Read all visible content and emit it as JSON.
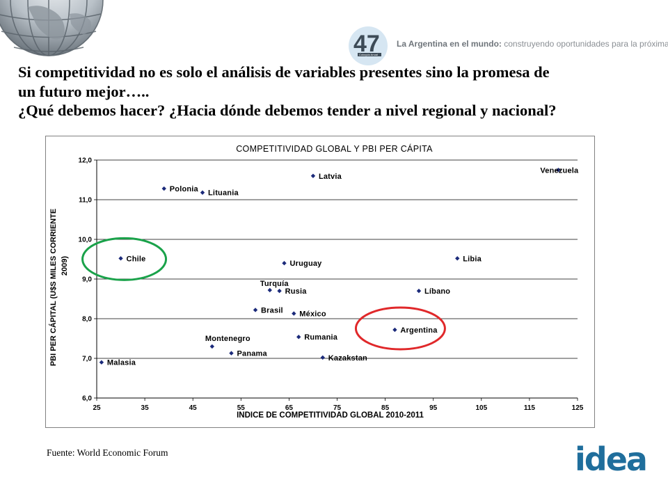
{
  "header": {
    "logo_number": "47",
    "logo_small_text": "Coloquio Anual",
    "tagline_bold": "La Argentina en el mundo:",
    "tagline_rest": " construyendo oportunidades para la próxima década"
  },
  "headline": {
    "line1": "Si competitividad no es solo el análisis de variables presentes sino la promesa de",
    "line2": "un futuro mejor…..",
    "line3": "¿Qué debemos hacer? ¿Hacia dónde debemos tender a nivel regional y nacional?"
  },
  "source": "Fuente: World Economic Forum",
  "brand": {
    "name": "idea",
    "color": "#1f6e9c"
  },
  "colors": {
    "highlight_chile": "#1aa24a",
    "highlight_argentina": "#e0282a",
    "points": "#1b2a7a"
  },
  "chart_data": {
    "type": "scatter",
    "title": "COMPETITIVIDAD GLOBAL Y PBI PER CÁPITA",
    "xlabel": "INDICE DE COMPETITIVIDAD GLOBAL 2010-2011",
    "ylabel_line1": "PBI PER CÁPITAL (U$S MILES CORRIENTE",
    "ylabel_line2": "2009)",
    "xlim": [
      25,
      125
    ],
    "ylim": [
      6.0,
      12.0
    ],
    "x_ticks": [
      "25",
      "35",
      "45",
      "55",
      "65",
      "75",
      "85",
      "95",
      "105",
      "115",
      "125"
    ],
    "y_ticks": [
      "6,0",
      "7,0",
      "8,0",
      "9,0",
      "10,0",
      "11,0",
      "12,0"
    ],
    "grid": "horizontal",
    "points": [
      {
        "label": "Malasia",
        "x": 26,
        "y": 6.9
      },
      {
        "label": "Chile",
        "x": 30,
        "y": 9.52
      },
      {
        "label": "Polonia",
        "x": 39,
        "y": 11.28
      },
      {
        "label": "Lituania",
        "x": 47,
        "y": 11.18
      },
      {
        "label": "Montenegro",
        "x": 49,
        "y": 7.3
      },
      {
        "label": "Panama",
        "x": 53,
        "y": 7.13
      },
      {
        "label": "Brasil",
        "x": 58,
        "y": 8.22
      },
      {
        "label": "Turquía",
        "x": 61,
        "y": 8.72
      },
      {
        "label": "Rusia",
        "x": 63,
        "y": 8.7
      },
      {
        "label": "Uruguay",
        "x": 64,
        "y": 9.4
      },
      {
        "label": "México",
        "x": 66,
        "y": 8.13
      },
      {
        "label": "Rumania",
        "x": 67,
        "y": 7.54
      },
      {
        "label": "Latvia",
        "x": 70,
        "y": 11.6
      },
      {
        "label": "Kazakstan",
        "x": 72,
        "y": 7.02
      },
      {
        "label": "Argentina",
        "x": 87,
        "y": 7.72
      },
      {
        "label": "Líbano",
        "x": 92,
        "y": 8.7
      },
      {
        "label": "Libia",
        "x": 100,
        "y": 9.52
      },
      {
        "label": "Venezuela",
        "x": 121,
        "y": 11.75
      }
    ],
    "highlights": [
      {
        "label": "Chile",
        "color": "#1aa24a"
      },
      {
        "label": "Argentina",
        "color": "#e0282a"
      }
    ]
  }
}
